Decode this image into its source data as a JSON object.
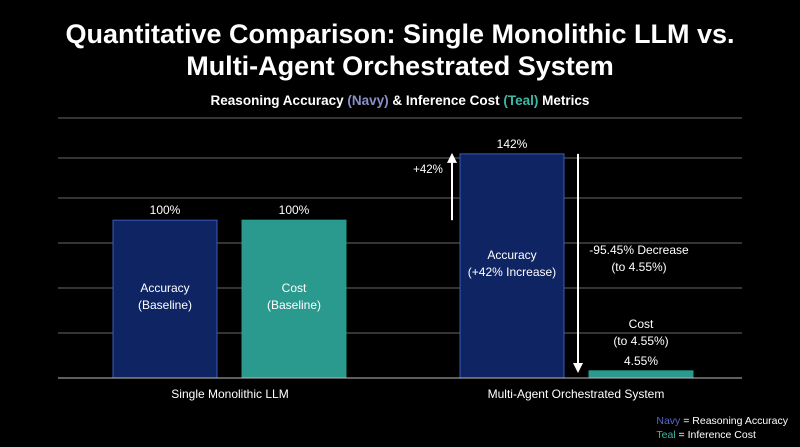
{
  "title_line1": "Quantitative Comparison: Single Monolithic LLM vs.",
  "title_line2": "Multi-Agent Orchestrated System",
  "subtitle": {
    "prefix": "Reasoning Accuracy ",
    "navy": "(Navy)",
    "mid": " & Inference Cost ",
    "teal": "(Teal)",
    "suffix": " Metrics"
  },
  "legend": {
    "navy_key": "Navy",
    "navy_text": " = Reasoning Accuracy",
    "teal_key": "Teal",
    "teal_text": " = Inference Cost"
  },
  "colors": {
    "navy": "#0e2463",
    "teal": "#2a9a8e",
    "grid": "#8a8a8a"
  },
  "chart_data": {
    "type": "bar",
    "title": "Quantitative Comparison: Single Monolithic LLM vs. Multi-Agent Orchestrated System",
    "subtitle": "Reasoning Accuracy (Navy) & Inference Cost (Teal) Metrics",
    "categories": [
      "Single Monolithic LLM",
      "Multi-Agent Orchestrated System"
    ],
    "series": [
      {
        "name": "Reasoning Accuracy",
        "values": [
          100,
          142
        ]
      },
      {
        "name": "Inference Cost",
        "values": [
          100,
          4.55
        ]
      }
    ],
    "ylim": [
      0,
      166
    ],
    "grid": true,
    "legend_position": "bottom-right",
    "value_labels": [
      [
        "100%",
        "100%"
      ],
      [
        "142%",
        "4.55%"
      ]
    ],
    "bar_labels": [
      [
        [
          "Accuracy",
          "(Baseline)"
        ],
        [
          "Cost",
          "(Baseline)"
        ]
      ],
      [
        [
          "Accuracy",
          "(+42% Increase)"
        ],
        [
          "Cost",
          "(to 4.55%)"
        ]
      ]
    ],
    "annotations": {
      "increase": "+42%",
      "decrease_line1": "-95.45% Decrease",
      "decrease_line2": "(to 4.55%)"
    }
  }
}
